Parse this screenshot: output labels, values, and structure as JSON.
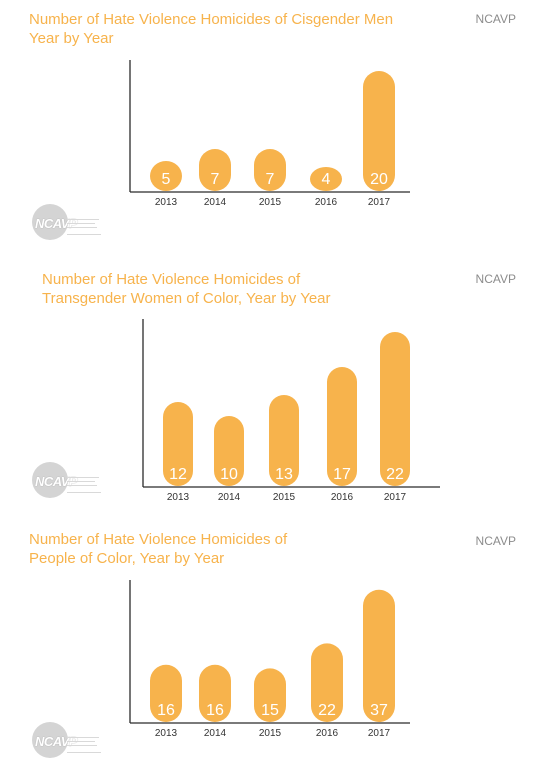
{
  "chart_data": [
    {
      "type": "bar",
      "title": [
        "Number of Hate Violence Homicides of Cisgender Men",
        "Year by Year"
      ],
      "source": "NCAVP",
      "categories": [
        "2013",
        "2014",
        "2015",
        "2016",
        "2017"
      ],
      "values": [
        5,
        7,
        7,
        4,
        20
      ],
      "ylim": [
        0,
        22
      ],
      "grid": false,
      "bar_color": "#f7b34c",
      "logo_text": "NCAVP"
    },
    {
      "type": "bar",
      "title": [
        "Number of Hate Violence Homicides of",
        "Transgender Women of Color, Year by Year"
      ],
      "source": "NCAVP",
      "categories": [
        "2013",
        "2014",
        "2015",
        "2016",
        "2017"
      ],
      "values": [
        12,
        10,
        13,
        17,
        22
      ],
      "ylim": [
        0,
        24
      ],
      "grid": false,
      "bar_color": "#f7b34c",
      "logo_text": "NCAVP"
    },
    {
      "type": "bar",
      "title": [
        "Number of Hate Violence Homicides of",
        "People of Color, Year by Year"
      ],
      "source": "NCAVP",
      "categories": [
        "2013",
        "2014",
        "2015",
        "2016",
        "2017"
      ],
      "values": [
        16,
        16,
        15,
        22,
        37
      ],
      "ylim": [
        0,
        40
      ],
      "grid": false,
      "bar_color": "#f7b34c",
      "logo_text": "NCAVP"
    }
  ]
}
